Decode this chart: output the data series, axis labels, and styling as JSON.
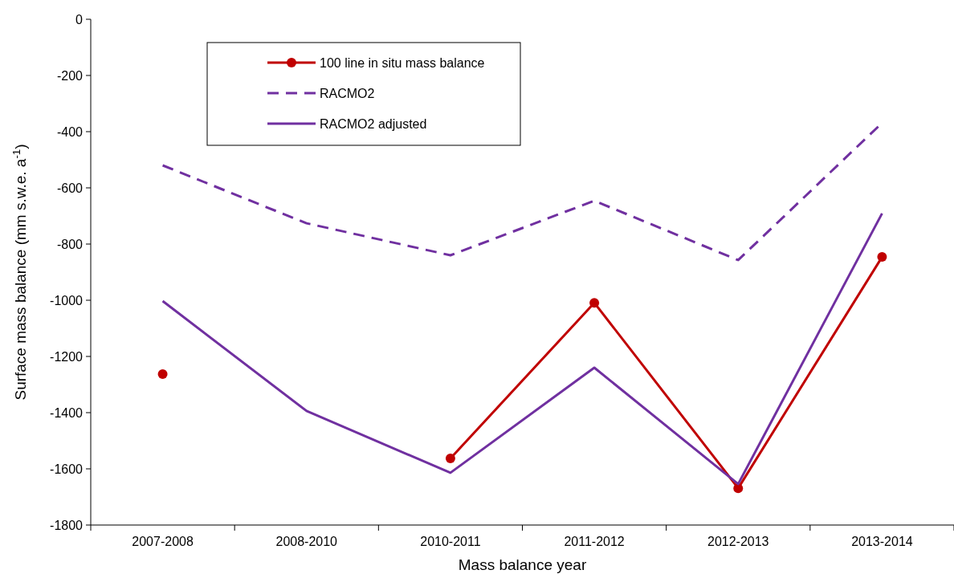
{
  "chart_data": {
    "type": "line",
    "xlabel": "Mass balance year",
    "ylabel": "Surface mass balance (mm s.w.e. a$^{-1}$)",
    "categories": [
      "2007-2008",
      "2008-2010",
      "2010-2011",
      "2011-2012",
      "2012-2013",
      "2013-2014"
    ],
    "ylim": [
      -1800,
      0
    ],
    "yticks": [
      -1800,
      -1600,
      -1400,
      -1200,
      -1000,
      -800,
      -600,
      -400,
      -200,
      0
    ],
    "grid": false,
    "legend": "top left",
    "series": [
      {
        "name": "100 line in situ mass balance",
        "color": "#c00000",
        "marker": "circle",
        "line_style": "solid",
        "values": [
          -1263,
          null,
          -1563,
          -1009,
          -1669,
          -846
        ]
      },
      {
        "name": "RACMO2",
        "color": "#7030a0",
        "marker": "none",
        "line_style": "dashed",
        "values": [
          -520,
          -726,
          -840,
          -646,
          -857,
          -369
        ]
      },
      {
        "name": "RACMO2 adjusted",
        "color": "#7030a0",
        "marker": "none",
        "line_style": "solid",
        "values": [
          -1003,
          -1394,
          -1614,
          -1240,
          -1654,
          -691
        ]
      }
    ]
  }
}
